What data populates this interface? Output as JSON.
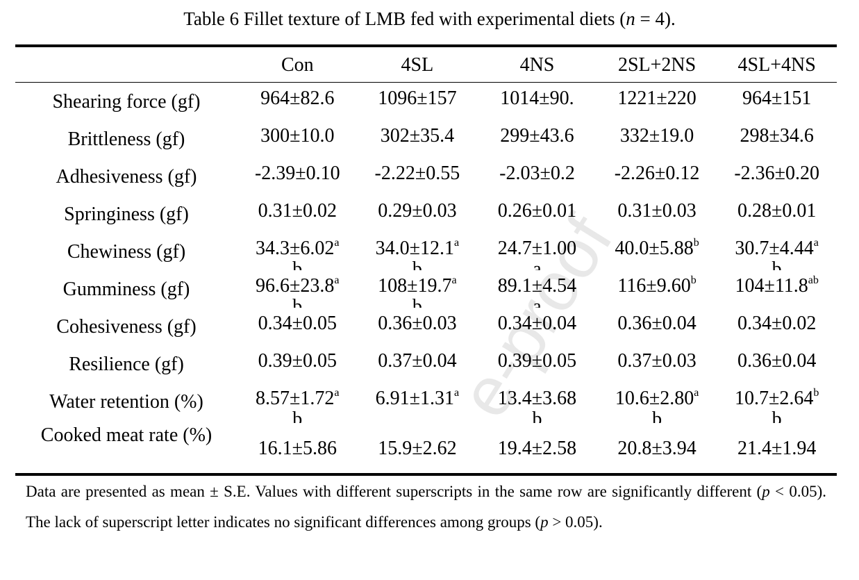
{
  "title": [
    {
      "text": "Table 6 Fillet texture of LMB fed with experimental diets ("
    },
    {
      "text": "n",
      "italic": true
    },
    {
      "text": " = 4)."
    }
  ],
  "table": {
    "header": [
      "Con",
      "4SL",
      "4NS",
      "2SL+2NS",
      "4SL+4NS"
    ],
    "rows": [
      {
        "label": "Shearing force (gf)",
        "cells": [
          {
            "text": "964±82.6"
          },
          {
            "text": "1096±157"
          },
          {
            "text": "1014±90."
          },
          {
            "text": "1221±220"
          },
          {
            "text": "964±151"
          }
        ]
      },
      {
        "label": "Brittleness (gf)",
        "cells": [
          {
            "text": "300±10.0"
          },
          {
            "text": "302±35.4"
          },
          {
            "text": "299±43.6"
          },
          {
            "text": "332±19.0"
          },
          {
            "text": "298±34.6"
          }
        ]
      },
      {
        "label": "Adhesiveness (gf)",
        "cells": [
          {
            "text": "-2.39±0.10"
          },
          {
            "text": "-2.22±0.55"
          },
          {
            "text": "-2.03±0.2"
          },
          {
            "text": "-2.26±0.12"
          },
          {
            "text": "-2.36±0.20"
          }
        ]
      },
      {
        "label": "Springiness (gf)",
        "cells": [
          {
            "text": "0.31±0.02"
          },
          {
            "text": "0.29±0.03"
          },
          {
            "text": "0.26±0.01"
          },
          {
            "text": "0.31±0.03"
          },
          {
            "text": "0.28±0.01"
          }
        ]
      },
      {
        "label": "Chewiness (gf)",
        "cells": [
          {
            "text": "34.3±6.02",
            "sup": "a",
            "wrap": "b"
          },
          {
            "text": "34.0±12.1",
            "sup": "a",
            "wrap": "b"
          },
          {
            "text": "24.7±1.00",
            "wrap": "a"
          },
          {
            "text": "40.0±5.88",
            "sup": "b"
          },
          {
            "text": "30.7±4.44",
            "sup": "a",
            "wrap": "b"
          }
        ]
      },
      {
        "label": "Gumminess (gf)",
        "cells": [
          {
            "text": "96.6±23.8",
            "sup": "a",
            "wrap": "b"
          },
          {
            "text": "108±19.7",
            "sup": "a",
            "wrap": "b"
          },
          {
            "text": "89.1±4.54",
            "wrap": "a"
          },
          {
            "text": "116±9.60",
            "sup": "b"
          },
          {
            "text": "104±11.8",
            "sup": "ab"
          }
        ]
      },
      {
        "label": "Cohesiveness (gf)",
        "cells": [
          {
            "text": "0.34±0.05"
          },
          {
            "text": "0.36±0.03"
          },
          {
            "text": "0.34±0.04"
          },
          {
            "text": "0.36±0.04"
          },
          {
            "text": "0.34±0.02"
          }
        ]
      },
      {
        "label": "Resilience (gf)",
        "cells": [
          {
            "text": "0.39±0.05"
          },
          {
            "text": "0.37±0.04"
          },
          {
            "text": "0.39±0.05"
          },
          {
            "text": "0.37±0.03"
          },
          {
            "text": "0.36±0.04"
          }
        ]
      },
      {
        "label": "Water retention (%)",
        "cells": [
          {
            "text": "8.57±1.72",
            "sup": "a",
            "wrap": "b"
          },
          {
            "text": "6.91±1.31",
            "sup": "a"
          },
          {
            "text": "13.4±3.68",
            "wrap": "b"
          },
          {
            "text": "10.6±2.80",
            "sup": "a",
            "wrap": "b"
          },
          {
            "text": "10.7±2.64",
            "sup": "b",
            "wrap": "b"
          }
        ]
      },
      {
        "label": "Cooked meat rate (%)",
        "cells": [
          {
            "text": "16.1±5.86"
          },
          {
            "text": "15.9±2.62"
          },
          {
            "text": "19.4±2.58"
          },
          {
            "text": "20.8±3.94"
          },
          {
            "text": "21.4±1.94"
          }
        ]
      }
    ]
  },
  "footnote": [
    {
      "text": "Data are presented as mean ± S.E. Values with different superscripts in the same row are significantly different ("
    },
    {
      "text": "p",
      "italic": true
    },
    {
      "text": " < 0.05). The lack of superscript letter indicates no significant differences among groups ("
    },
    {
      "text": "p",
      "italic": true
    },
    {
      "text": " > 0.05)."
    }
  ],
  "watermark": "e-proof"
}
